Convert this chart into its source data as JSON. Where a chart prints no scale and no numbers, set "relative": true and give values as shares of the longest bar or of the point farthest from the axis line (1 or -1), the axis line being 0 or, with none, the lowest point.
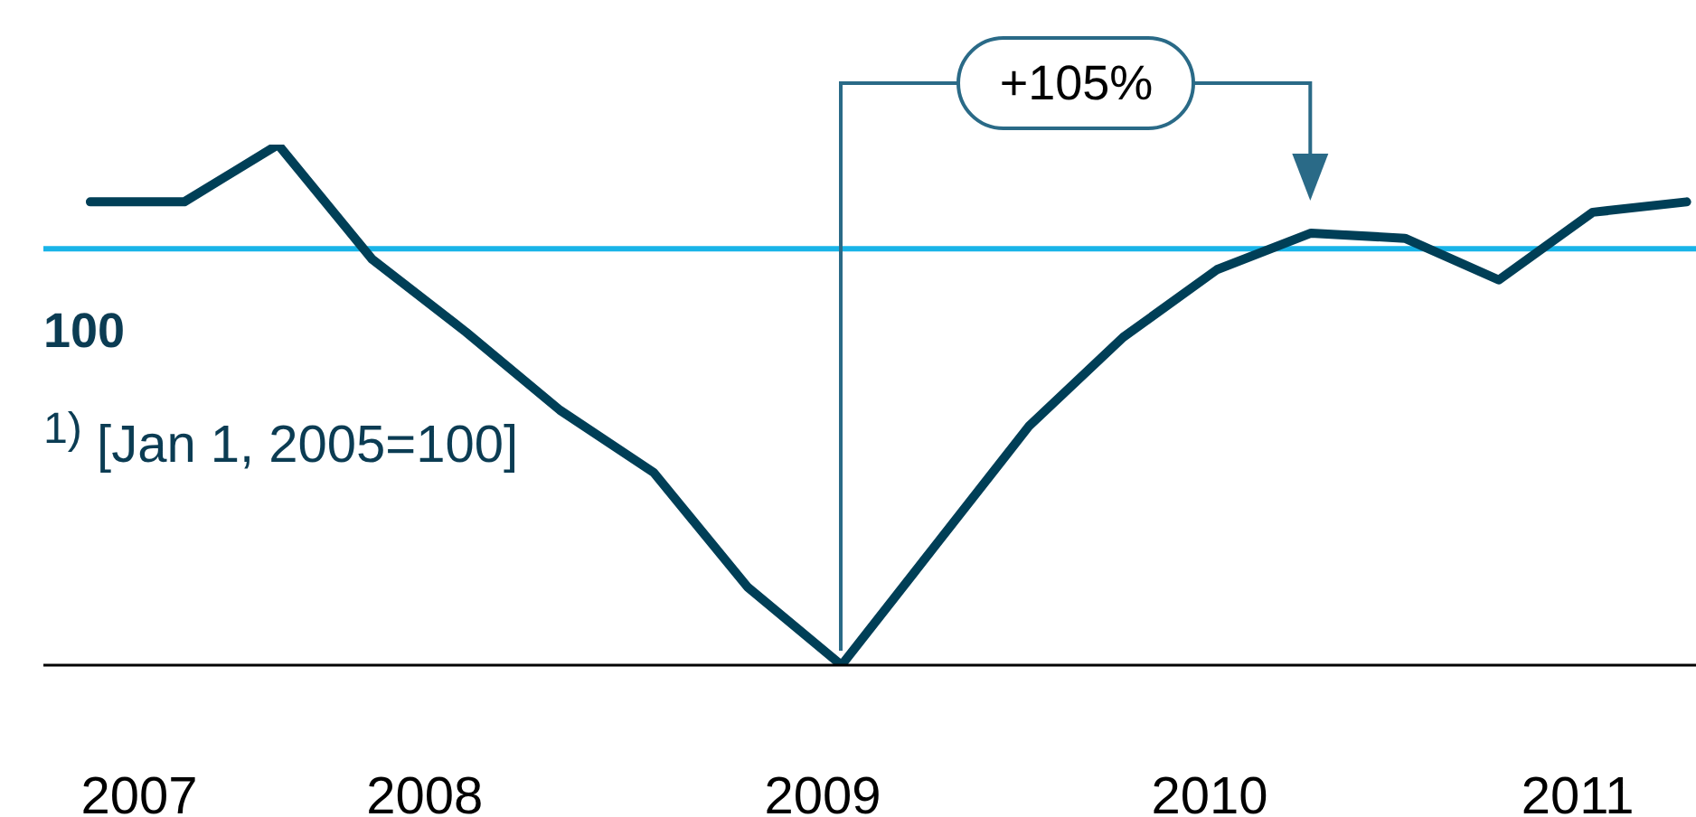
{
  "chart_data": {
    "type": "line",
    "relative": true,
    "x": [
      2007,
      2007.25,
      2007.5,
      2007.75,
      2008,
      2008.25,
      2008.5,
      2008.75,
      2009,
      2009.25,
      2009.5,
      2009.75,
      2010,
      2010.25,
      2010.5,
      2010.75,
      2011,
      2011.25
    ],
    "series": [
      {
        "color": "#003f57",
        "values": [
          0.89,
          0.89,
          1,
          0.78,
          0.64,
          0.49,
          0.37,
          0.15,
          0,
          0.23,
          0.46,
          0.63,
          0.76,
          0.83,
          0.82,
          0.74,
          0.87,
          0.89
        ]
      }
    ],
    "xlim": [
      2006.875,
      2011.275
    ],
    "xticks": [
      {
        "value": 2007.13,
        "label": "2007"
      },
      {
        "value": 2007.89,
        "label": "2008"
      },
      {
        "value": 2008.95,
        "label": "2009"
      },
      {
        "value": 2009.98,
        "label": "2010"
      },
      {
        "value": 2010.96,
        "label": "2011"
      }
    ],
    "ref_lines": [
      {
        "axis": "y",
        "value": 0.8,
        "color": "#19b4e8"
      }
    ],
    "annotations": [
      "+105%",
      "100",
      "$^{1)}$ [Jan 1, 2005=100]"
    ],
    "marker": "none",
    "line_style": "solid"
  }
}
